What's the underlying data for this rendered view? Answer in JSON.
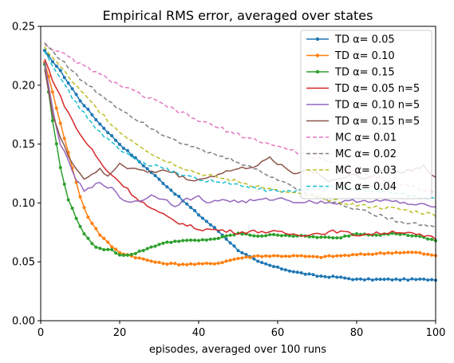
{
  "chart_data": {
    "type": "line",
    "title": "Empirical RMS error, averaged over states",
    "xlabel": "episodes, averaged over 100 runs",
    "ylabel": "",
    "xlim": [
      0,
      100
    ],
    "ylim": [
      0,
      0.25
    ],
    "xticks": [
      0,
      20,
      40,
      60,
      80,
      100
    ],
    "yticks": [
      0.0,
      0.05,
      0.1,
      0.15,
      0.2,
      0.25
    ],
    "xtick_labels": [
      "0",
      "20",
      "40",
      "60",
      "80",
      "100"
    ],
    "ytick_labels": [
      "0.00",
      "0.05",
      "0.10",
      "0.15",
      "0.20",
      "0.25"
    ],
    "grid": false,
    "legend_position": "top-right",
    "series": [
      {
        "name": "TD α= 0.05",
        "color": "#1f77b4",
        "style": "solid",
        "marker": true,
        "knots": [
          [
            1,
            0.229
          ],
          [
            5,
            0.212
          ],
          [
            10,
            0.187
          ],
          [
            15,
            0.167
          ],
          [
            20,
            0.15
          ],
          [
            25,
            0.135
          ],
          [
            30,
            0.12
          ],
          [
            35,
            0.105
          ],
          [
            40,
            0.09
          ],
          [
            45,
            0.076
          ],
          [
            50,
            0.06
          ],
          [
            55,
            0.05
          ],
          [
            60,
            0.045
          ],
          [
            65,
            0.041
          ],
          [
            70,
            0.038
          ],
          [
            75,
            0.037
          ],
          [
            80,
            0.035
          ],
          [
            85,
            0.035
          ],
          [
            90,
            0.035
          ],
          [
            95,
            0.035
          ],
          [
            100,
            0.035
          ]
        ]
      },
      {
        "name": "TD α= 0.10",
        "color": "#ff7f0e",
        "style": "solid",
        "marker": true,
        "knots": [
          [
            1,
            0.22
          ],
          [
            5,
            0.168
          ],
          [
            8,
            0.13
          ],
          [
            10,
            0.105
          ],
          [
            12,
            0.088
          ],
          [
            15,
            0.073
          ],
          [
            18,
            0.063
          ],
          [
            20,
            0.058
          ],
          [
            25,
            0.053
          ],
          [
            30,
            0.049
          ],
          [
            35,
            0.048
          ],
          [
            40,
            0.048
          ],
          [
            45,
            0.049
          ],
          [
            50,
            0.053
          ],
          [
            55,
            0.055
          ],
          [
            60,
            0.055
          ],
          [
            65,
            0.055
          ],
          [
            70,
            0.054
          ],
          [
            75,
            0.055
          ],
          [
            80,
            0.056
          ],
          [
            85,
            0.057
          ],
          [
            90,
            0.058
          ],
          [
            95,
            0.058
          ],
          [
            100,
            0.055
          ]
        ]
      },
      {
        "name": "TD α= 0.15",
        "color": "#2ca02c",
        "style": "solid",
        "marker": true,
        "knots": [
          [
            1,
            0.218
          ],
          [
            3,
            0.17
          ],
          [
            5,
            0.13
          ],
          [
            7,
            0.103
          ],
          [
            9,
            0.087
          ],
          [
            11,
            0.074
          ],
          [
            13,
            0.065
          ],
          [
            15,
            0.061
          ],
          [
            18,
            0.06
          ],
          [
            20,
            0.056
          ],
          [
            23,
            0.056
          ],
          [
            26,
            0.06
          ],
          [
            30,
            0.065
          ],
          [
            35,
            0.068
          ],
          [
            40,
            0.068
          ],
          [
            45,
            0.07
          ],
          [
            50,
            0.074
          ],
          [
            55,
            0.072
          ],
          [
            60,
            0.073
          ],
          [
            65,
            0.072
          ],
          [
            70,
            0.071
          ],
          [
            75,
            0.07
          ],
          [
            80,
            0.074
          ],
          [
            85,
            0.073
          ],
          [
            90,
            0.074
          ],
          [
            95,
            0.072
          ],
          [
            100,
            0.068
          ]
        ]
      },
      {
        "name": "TD α= 0.05 n=5",
        "color": "#d62728",
        "style": "solid",
        "marker": false,
        "knots": [
          [
            1,
            0.222
          ],
          [
            3,
            0.205
          ],
          [
            5,
            0.19
          ],
          [
            8,
            0.17
          ],
          [
            10,
            0.158
          ],
          [
            13,
            0.145
          ],
          [
            16,
            0.13
          ],
          [
            20,
            0.118
          ],
          [
            24,
            0.105
          ],
          [
            28,
            0.095
          ],
          [
            32,
            0.088
          ],
          [
            36,
            0.082
          ],
          [
            40,
            0.078
          ],
          [
            45,
            0.077
          ],
          [
            50,
            0.075
          ],
          [
            55,
            0.076
          ],
          [
            60,
            0.075
          ],
          [
            65,
            0.073
          ],
          [
            70,
            0.074
          ],
          [
            75,
            0.076
          ],
          [
            80,
            0.073
          ],
          [
            85,
            0.074
          ],
          [
            90,
            0.076
          ],
          [
            95,
            0.073
          ],
          [
            100,
            0.07
          ]
        ]
      },
      {
        "name": "TD α= 0.10 n=5",
        "color": "#9467bd",
        "style": "solid",
        "marker": false,
        "knots": [
          [
            1,
            0.219
          ],
          [
            3,
            0.18
          ],
          [
            5,
            0.15
          ],
          [
            7,
            0.135
          ],
          [
            9,
            0.12
          ],
          [
            11,
            0.11
          ],
          [
            13,
            0.113
          ],
          [
            15,
            0.118
          ],
          [
            18,
            0.112
          ],
          [
            20,
            0.105
          ],
          [
            22,
            0.101
          ],
          [
            25,
            0.102
          ],
          [
            28,
            0.106
          ],
          [
            31,
            0.104
          ],
          [
            34,
            0.098
          ],
          [
            37,
            0.103
          ],
          [
            40,
            0.105
          ],
          [
            43,
            0.1
          ],
          [
            46,
            0.103
          ],
          [
            50,
            0.101
          ],
          [
            55,
            0.102
          ],
          [
            60,
            0.104
          ],
          [
            65,
            0.101
          ],
          [
            70,
            0.101
          ],
          [
            75,
            0.1
          ],
          [
            80,
            0.102
          ],
          [
            85,
            0.102
          ],
          [
            90,
            0.101
          ],
          [
            95,
            0.098
          ],
          [
            100,
            0.098
          ]
        ]
      },
      {
        "name": "TD α= 0.15 n=5",
        "color": "#8c564b",
        "style": "solid",
        "marker": false,
        "knots": [
          [
            1,
            0.215
          ],
          [
            3,
            0.175
          ],
          [
            5,
            0.155
          ],
          [
            7,
            0.14
          ],
          [
            9,
            0.13
          ],
          [
            11,
            0.12
          ],
          [
            13,
            0.125
          ],
          [
            15,
            0.128
          ],
          [
            17,
            0.122
          ],
          [
            20,
            0.134
          ],
          [
            22,
            0.13
          ],
          [
            25,
            0.128
          ],
          [
            28,
            0.126
          ],
          [
            31,
            0.128
          ],
          [
            34,
            0.125
          ],
          [
            37,
            0.12
          ],
          [
            40,
            0.12
          ],
          [
            43,
            0.122
          ],
          [
            46,
            0.126
          ],
          [
            49,
            0.128
          ],
          [
            52,
            0.13
          ],
          [
            55,
            0.132
          ],
          [
            58,
            0.138
          ],
          [
            61,
            0.132
          ],
          [
            64,
            0.125
          ],
          [
            67,
            0.128
          ],
          [
            70,
            0.126
          ],
          [
            73,
            0.118
          ],
          [
            76,
            0.122
          ],
          [
            79,
            0.124
          ],
          [
            82,
            0.12
          ],
          [
            85,
            0.125
          ],
          [
            88,
            0.13
          ],
          [
            91,
            0.126
          ],
          [
            94,
            0.128
          ],
          [
            97,
            0.132
          ],
          [
            100,
            0.121
          ]
        ]
      },
      {
        "name": "MC α= 0.01",
        "color": "#e377c2",
        "style": "dashed",
        "marker": false,
        "knots": [
          [
            1,
            0.235
          ],
          [
            10,
            0.218
          ],
          [
            20,
            0.2
          ],
          [
            30,
            0.185
          ],
          [
            40,
            0.17
          ],
          [
            50,
            0.158
          ],
          [
            60,
            0.148
          ],
          [
            70,
            0.138
          ],
          [
            80,
            0.127
          ],
          [
            90,
            0.117
          ],
          [
            100,
            0.109
          ]
        ]
      },
      {
        "name": "MC α= 0.02",
        "color": "#7f7f7f",
        "style": "dashed",
        "marker": false,
        "knots": [
          [
            1,
            0.236
          ],
          [
            10,
            0.205
          ],
          [
            20,
            0.18
          ],
          [
            30,
            0.16
          ],
          [
            40,
            0.145
          ],
          [
            50,
            0.135
          ],
          [
            60,
            0.12
          ],
          [
            70,
            0.105
          ],
          [
            80,
            0.095
          ],
          [
            90,
            0.085
          ],
          [
            100,
            0.08
          ]
        ]
      },
      {
        "name": "MC α= 0.03",
        "color": "#bcbd22",
        "style": "dashed",
        "marker": false,
        "knots": [
          [
            1,
            0.232
          ],
          [
            10,
            0.195
          ],
          [
            20,
            0.16
          ],
          [
            30,
            0.138
          ],
          [
            40,
            0.125
          ],
          [
            50,
            0.118
          ],
          [
            60,
            0.11
          ],
          [
            70,
            0.105
          ],
          [
            80,
            0.098
          ],
          [
            90,
            0.095
          ],
          [
            100,
            0.09
          ]
        ]
      },
      {
        "name": "MC α= 0.04",
        "color": "#17becf",
        "style": "dashed",
        "marker": false,
        "knots": [
          [
            1,
            0.23
          ],
          [
            5,
            0.205
          ],
          [
            10,
            0.18
          ],
          [
            15,
            0.16
          ],
          [
            20,
            0.145
          ],
          [
            25,
            0.135
          ],
          [
            30,
            0.13
          ],
          [
            35,
            0.125
          ],
          [
            40,
            0.12
          ],
          [
            45,
            0.118
          ],
          [
            50,
            0.115
          ],
          [
            55,
            0.112
          ],
          [
            60,
            0.11
          ],
          [
            65,
            0.11
          ],
          [
            70,
            0.112
          ],
          [
            75,
            0.113
          ],
          [
            80,
            0.112
          ],
          [
            85,
            0.11
          ],
          [
            90,
            0.108
          ],
          [
            95,
            0.105
          ],
          [
            100,
            0.103
          ]
        ]
      }
    ]
  }
}
